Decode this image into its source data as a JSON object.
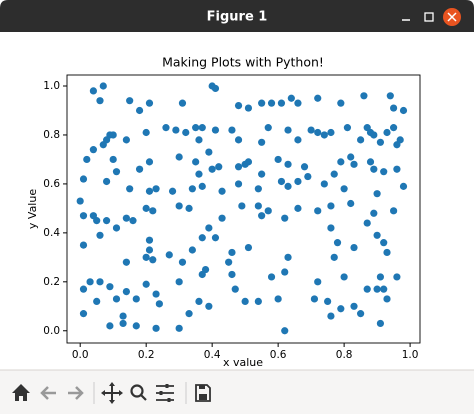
{
  "window": {
    "title": "Figure 1"
  },
  "chart_data": {
    "type": "scatter",
    "title": "Making Plots with Python!",
    "x_label": "x value",
    "y_label": "y Value",
    "color": "#1f77b4",
    "xlim": [
      -0.04,
      1.03
    ],
    "ylim": [
      -0.05,
      1.045
    ],
    "xticks": [
      {
        "value": 0,
        "label": "0.0"
      },
      0.2,
      0.4,
      0.6,
      0.8,
      {
        "value": 1,
        "label": "1.0"
      }
    ],
    "yticks": [
      {
        "value": 0,
        "label": "0.0"
      },
      0.2,
      0.4,
      0.6,
      0.8,
      {
        "value": 1,
        "label": "1.0"
      }
    ],
    "grid": false,
    "x": [
      0.04,
      0.07,
      0.06,
      0.15,
      0.18,
      0.21,
      0.31,
      0.4,
      0.41,
      0.48,
      0.51,
      0.55,
      0.58,
      0.61,
      0.64,
      0.66,
      0.72,
      0.79,
      0.86,
      0.94,
      0.95,
      0.98,
      0.09,
      0.1,
      0.08,
      0.04,
      0.07,
      0.14,
      0.2,
      0.26,
      0.29,
      0.32,
      0.35,
      0.37,
      0.36,
      0.39,
      0.41,
      0.46,
      0.48,
      0.55,
      0.57,
      0.63,
      0.66,
      0.72,
      0.74,
      0.76,
      0.7,
      0.81,
      0.85,
      0.87,
      0.88,
      0.89,
      0.91,
      0.93,
      0.95,
      0.96,
      0.97,
      0.02,
      0.01,
      0.1,
      0.11,
      0.21,
      0.18,
      0.3,
      0.35,
      0.36,
      0.4,
      0.42,
      0.48,
      0.5,
      0.51,
      0.55,
      0.6,
      0.63,
      0.68,
      0.69,
      0.66,
      0.77,
      0.79,
      0.82,
      0.83,
      0.88,
      0.89,
      0.92,
      0.96,
      0.98,
      0.9,
      0.8,
      0.74,
      0.63,
      0.61,
      0.54,
      0.48,
      0.43,
      0.37,
      0.34,
      0.28,
      0.23,
      0.21,
      0.15,
      0.08,
      0.0,
      0.01,
      0.04,
      0.05,
      0.08,
      0.11,
      0.14,
      0.16,
      0.2,
      0.22,
      0.3,
      0.33,
      0.39,
      0.43,
      0.49,
      0.54,
      0.55,
      0.57,
      0.62,
      0.66,
      0.72,
      0.76,
      0.82,
      0.89,
      0.95,
      0.76,
      0.78,
      0.87,
      0.9,
      0.92,
      0.93,
      0.01,
      0.06,
      0.21,
      0.21,
      0.2,
      0.14,
      0.22,
      0.27,
      0.34,
      0.37,
      0.41,
      0.45,
      0.51,
      0.46,
      0.63,
      0.77,
      0.83,
      0.03,
      0.01,
      0.06,
      0.09,
      0.11,
      0.14,
      0.17,
      0.2,
      0.23,
      0.24,
      0.3,
      0.31,
      0.37,
      0.38,
      0.46,
      0.47,
      0.5,
      0.54,
      0.58,
      0.6,
      0.62,
      0.72,
      0.71,
      0.75,
      0.76,
      0.79,
      0.8,
      0.83,
      0.85,
      0.87,
      0.9,
      0.91,
      0.92,
      0.93,
      0.96,
      0.91,
      0.05,
      0.01,
      0.09,
      0.13,
      0.13,
      0.17,
      0.23,
      0.3,
      0.33,
      0.36,
      0.39,
      0.62
    ],
    "values": [
      0.98,
      1.0,
      0.94,
      0.94,
      0.9,
      0.93,
      0.93,
      1.0,
      0.99,
      0.92,
      0.91,
      0.93,
      0.93,
      0.93,
      0.95,
      0.93,
      0.95,
      0.93,
      0.96,
      0.96,
      0.91,
      0.9,
      0.8,
      0.8,
      0.78,
      0.74,
      0.76,
      0.78,
      0.81,
      0.83,
      0.82,
      0.81,
      0.83,
      0.83,
      0.78,
      0.73,
      0.82,
      0.82,
      0.78,
      0.77,
      0.83,
      0.82,
      0.78,
      0.81,
      0.8,
      0.81,
      0.82,
      0.83,
      0.78,
      0.83,
      0.81,
      0.8,
      0.77,
      0.81,
      0.83,
      0.76,
      0.78,
      0.7,
      0.62,
      0.7,
      0.65,
      0.69,
      0.66,
      0.71,
      0.69,
      0.64,
      0.66,
      0.67,
      0.67,
      0.68,
      0.69,
      0.64,
      0.7,
      0.68,
      0.67,
      0.63,
      0.61,
      0.64,
      0.69,
      0.71,
      0.68,
      0.69,
      0.66,
      0.65,
      0.66,
      0.59,
      0.56,
      0.58,
      0.6,
      0.59,
      0.61,
      0.58,
      0.6,
      0.57,
      0.59,
      0.58,
      0.57,
      0.58,
      0.57,
      0.58,
      0.61,
      0.53,
      0.47,
      0.47,
      0.45,
      0.45,
      0.42,
      0.46,
      0.45,
      0.5,
      0.49,
      0.51,
      0.5,
      0.42,
      0.46,
      0.51,
      0.51,
      0.47,
      0.49,
      0.46,
      0.5,
      0.49,
      0.51,
      0.52,
      0.48,
      0.49,
      0.42,
      0.36,
      0.44,
      0.39,
      0.36,
      0.32,
      0.35,
      0.39,
      0.37,
      0.33,
      0.3,
      0.28,
      0.29,
      0.31,
      0.33,
      0.38,
      0.38,
      0.28,
      0.34,
      0.32,
      0.3,
      0.3,
      0.34,
      0.2,
      0.17,
      0.2,
      0.18,
      0.13,
      0.16,
      0.13,
      0.19,
      0.15,
      0.11,
      0.2,
      0.28,
      0.23,
      0.25,
      0.23,
      0.17,
      0.12,
      0.12,
      0.22,
      0.13,
      0.24,
      0.2,
      0.13,
      0.12,
      0.06,
      0.09,
      0.22,
      0.1,
      0.07,
      0.17,
      0.17,
      0.22,
      0.17,
      0.13,
      0.22,
      0.03,
      0.12,
      0.07,
      0.02,
      0.03,
      0.06,
      0.02,
      0.01,
      0.01,
      0.07,
      0.12,
      0.1,
      0.0
    ]
  }
}
